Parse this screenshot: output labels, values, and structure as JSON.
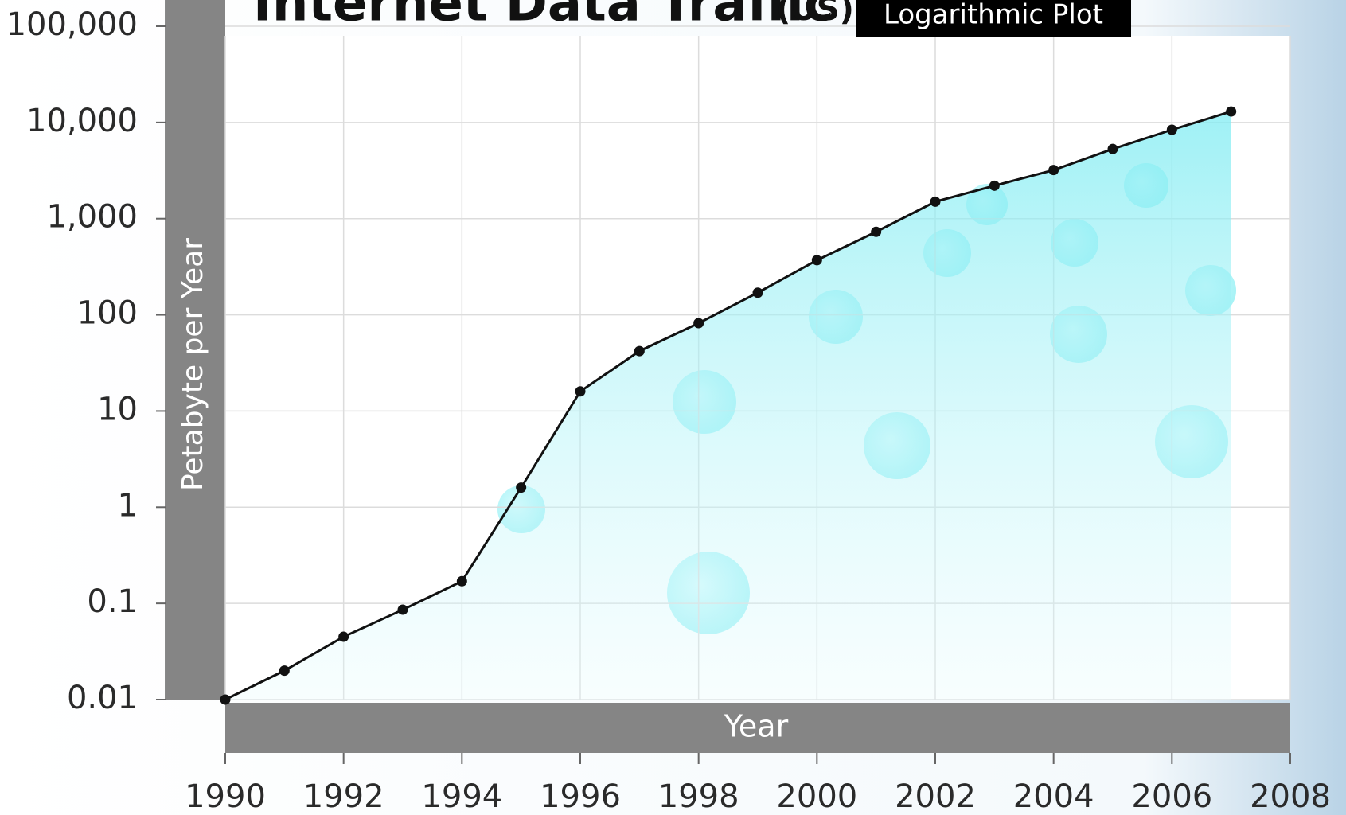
{
  "chart_data": {
    "type": "line",
    "title": "Internet Data Traffic",
    "subtitle": "(US)",
    "annotation": "Logarithmic Plot",
    "x_label": "Year",
    "y_label": "Petabyte per Year",
    "log_y": true,
    "grid": true,
    "x": [
      1990,
      1991,
      1992,
      1993,
      1994,
      1995,
      1996,
      1997,
      1998,
      1999,
      2000,
      2001,
      2002,
      2003,
      2004,
      2005,
      2006,
      2007
    ],
    "series": [
      {
        "color": "#111111",
        "values": [
          0.01,
          0.02,
          0.045,
          0.086,
          0.17,
          1.6,
          16,
          42,
          82,
          170,
          370,
          730,
          1500,
          2200,
          3200,
          5300,
          8400,
          13000
        ]
      }
    ],
    "xlim": [
      1990,
      2008
    ],
    "xticks": [
      1990,
      1992,
      1994,
      1996,
      1998,
      2000,
      2002,
      2004,
      2006,
      2008
    ],
    "ylim": [
      0.01,
      100000
    ],
    "yticks": [
      0.01,
      0.1,
      1,
      10,
      100,
      {
        "value": 1000,
        "label": "1,000"
      },
      {
        "value": 10000,
        "label": "10,000"
      },
      {
        "value": 100000,
        "label": "100,000"
      }
    ]
  }
}
